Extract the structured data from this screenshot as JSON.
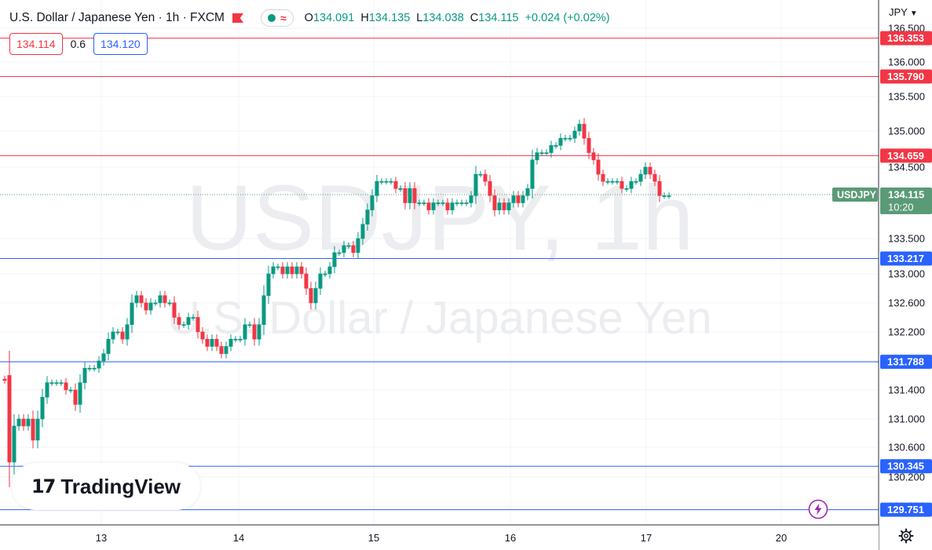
{
  "header": {
    "symbol_title": "U.S. Dollar / Japanese Yen · 1h · FXCM",
    "ohlc": [
      {
        "label": "O",
        "value": "134.091"
      },
      {
        "label": "H",
        "value": "134.135"
      },
      {
        "label": "L",
        "value": "134.038"
      },
      {
        "label": "C",
        "value": "134.115"
      }
    ],
    "change": "+0.024 (+0.02%)"
  },
  "quote": {
    "bid": "134.114",
    "spread": "0.6",
    "ask": "134.120"
  },
  "currency_label": "JPY",
  "watermark": {
    "ticker": "USDJPY, 1h",
    "name": "U.S. Dollar / Japanese Yen"
  },
  "branding": {
    "logo_text": "TradingView"
  },
  "colors": {
    "up": "#089981",
    "down": "#f23645",
    "resistance": "#f23645",
    "support": "#2962ff",
    "price_label": "#5b9a77"
  },
  "chart_data": {
    "type": "candlestick",
    "xlabel": "",
    "ylabel": "",
    "grid": true,
    "x_ticks": [
      "13",
      "14",
      "15",
      "16",
      "17",
      "20"
    ],
    "y_ticks": [
      "136.500",
      "136.000",
      "135.500",
      "135.000",
      "134.500",
      "133.500",
      "133.000",
      "132.600",
      "132.200",
      "131.800",
      "131.400",
      "131.000",
      "130.600",
      "130.200",
      "129.800"
    ],
    "horizontal_lines": [
      {
        "value": 136.353,
        "label": "136.353",
        "kind": "resistance"
      },
      {
        "value": 135.79,
        "label": "135.790",
        "kind": "resistance"
      },
      {
        "value": 134.659,
        "label": "134.659",
        "kind": "resistance"
      },
      {
        "value": 133.217,
        "label": "133.217",
        "kind": "support"
      },
      {
        "value": 131.788,
        "label": "131.788",
        "kind": "support"
      },
      {
        "value": 130.345,
        "label": "130.345",
        "kind": "support"
      },
      {
        "value": 129.751,
        "label": "129.751",
        "kind": "support"
      }
    ],
    "last_price": {
      "value": 134.115,
      "symbol": "USDJPY",
      "price_label": "134.115",
      "countdown": "10:20"
    },
    "closes": [
      131.6,
      130.4,
      130.9,
      131.0,
      130.9,
      131.0,
      130.7,
      131.0,
      131.3,
      131.5,
      131.5,
      131.5,
      131.5,
      131.4,
      131.4,
      131.2,
      131.5,
      131.7,
      131.7,
      131.7,
      131.8,
      131.9,
      132.1,
      132.2,
      132.2,
      132.1,
      132.3,
      132.6,
      132.7,
      132.6,
      132.5,
      132.6,
      132.6,
      132.7,
      132.6,
      132.6,
      132.4,
      132.3,
      132.3,
      132.4,
      132.4,
      132.2,
      132.1,
      132.0,
      132.1,
      132.0,
      131.9,
      132.0,
      132.1,
      132.1,
      132.1,
      132.3,
      132.3,
      132.1,
      132.3,
      132.7,
      133.0,
      133.1,
      133.1,
      133.0,
      133.1,
      133.0,
      133.1,
      133.0,
      132.8,
      132.6,
      132.8,
      133.0,
      133.0,
      133.1,
      133.3,
      133.3,
      133.4,
      133.4,
      133.3,
      133.5,
      133.7,
      133.9,
      134.1,
      134.3,
      134.3,
      134.3,
      134.3,
      134.2,
      134.2,
      134.0,
      134.2,
      134.0,
      134.0,
      134.0,
      133.9,
      134.0,
      134.0,
      134.0,
      133.9,
      134.0,
      134.0,
      134.0,
      134.0,
      134.1,
      134.4,
      134.4,
      134.3,
      134.1,
      133.9,
      134.0,
      133.9,
      134.0,
      134.1,
      134.0,
      134.1,
      134.2,
      134.6,
      134.7,
      134.7,
      134.7,
      134.8,
      134.8,
      134.9,
      134.9,
      134.9,
      135.0,
      135.1,
      134.9,
      134.7,
      134.6,
      134.4,
      134.3,
      134.3,
      134.3,
      134.3,
      134.2,
      134.2,
      134.3,
      134.3,
      134.4,
      134.5,
      134.4,
      134.3,
      134.1,
      134.1,
      134.1
    ]
  }
}
